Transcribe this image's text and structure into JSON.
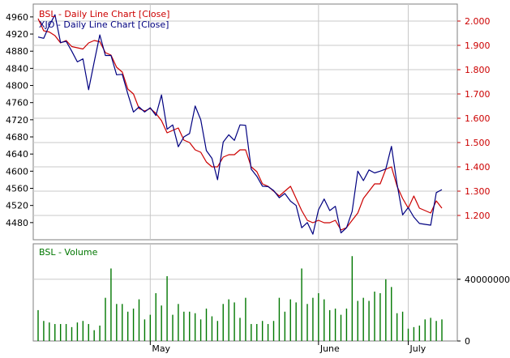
{
  "chart_data": [
    {
      "type": "line",
      "legend": [
        "BSL - Daily Line Chart [Close]",
        "XJO - Daily Line Chart [Close]"
      ],
      "left_axis": {
        "ylim": [
          4440,
          4990
        ],
        "ticks": [
          "4960",
          "4920",
          "4880",
          "4840",
          "4800",
          "4760",
          "4720",
          "4680",
          "4640",
          "4600",
          "4560",
          "4520",
          "4480"
        ],
        "tick_values": [
          4960,
          4920,
          4880,
          4840,
          4800,
          4760,
          4720,
          4680,
          4640,
          4600,
          4560,
          4520,
          4480
        ]
      },
      "right_axis": {
        "ylim": [
          1.1,
          2.07
        ],
        "ticks": [
          "2.000",
          "1.900",
          "1.800",
          "1.700",
          "1.600",
          "1.500",
          "1.400",
          "1.300",
          "1.200"
        ],
        "tick_values": [
          2.0,
          1.9,
          1.8,
          1.7,
          1.6,
          1.5,
          1.4,
          1.3,
          1.2
        ]
      },
      "series": [
        {
          "name": "XJO - Daily Line Chart [Close]",
          "axis": "left",
          "color": "#000080",
          "values": [
            4913,
            4910,
            4940,
            4965,
            4900,
            4903,
            4880,
            4855,
            4862,
            4790,
            4855,
            4918,
            4870,
            4870,
            4825,
            4826,
            4780,
            4738,
            4750,
            4738,
            4748,
            4730,
            4778,
            4698,
            4708,
            4657,
            4680,
            4688,
            4752,
            4720,
            4648,
            4630,
            4580,
            4668,
            4685,
            4672,
            4708,
            4707,
            4605,
            4588,
            4565,
            4564,
            4555,
            4538,
            4548,
            4530,
            4520,
            4468,
            4480,
            4453,
            4510,
            4535,
            4508,
            4518,
            4456,
            4468,
            4506,
            4600,
            4578,
            4603,
            4596,
            4600,
            4605,
            4658,
            4570,
            4498,
            4515,
            4493,
            4478,
            4476,
            4474,
            4550,
            4557
          ]
        },
        {
          "name": "BSL - Daily Line Chart [Close]",
          "axis": "right",
          "color": "#cc0000",
          "values": [
            2.01,
            1.96,
            1.955,
            1.94,
            1.91,
            1.92,
            1.895,
            1.89,
            1.885,
            1.91,
            1.92,
            1.915,
            1.87,
            1.86,
            1.81,
            1.79,
            1.72,
            1.7,
            1.64,
            1.63,
            1.64,
            1.62,
            1.59,
            1.54,
            1.55,
            1.56,
            1.51,
            1.5,
            1.47,
            1.46,
            1.42,
            1.4,
            1.4,
            1.44,
            1.45,
            1.45,
            1.47,
            1.47,
            1.4,
            1.38,
            1.33,
            1.32,
            1.3,
            1.28,
            1.3,
            1.32,
            1.27,
            1.22,
            1.18,
            1.17,
            1.18,
            1.17,
            1.17,
            1.18,
            1.14,
            1.15,
            1.18,
            1.21,
            1.27,
            1.3,
            1.33,
            1.33,
            1.39,
            1.4,
            1.32,
            1.27,
            1.23,
            1.28,
            1.23,
            1.22,
            1.21,
            1.26,
            1.23
          ]
        }
      ],
      "x_labels": [
        "May",
        "June",
        "July"
      ],
      "x_label_index": [
        20,
        50,
        66
      ],
      "grid": true
    },
    {
      "type": "bar",
      "legend": [
        "BSL - Volume"
      ],
      "ylim": [
        0,
        63000000
      ],
      "ticks": [
        "40000000",
        "0"
      ],
      "tick_values": [
        40000000,
        0
      ],
      "series": [
        {
          "name": "BSL - Volume",
          "color": "#007700",
          "values": [
            20000000,
            13000000,
            12000000,
            11000000,
            11000000,
            11000000,
            9000000,
            12000000,
            13000000,
            11000000,
            7000000,
            10000000,
            28000000,
            47000000,
            24000000,
            24000000,
            19000000,
            21000000,
            27000000,
            14000000,
            17000000,
            31000000,
            23000000,
            42000000,
            17000000,
            24000000,
            19000000,
            19000000,
            18000000,
            14000000,
            21000000,
            16000000,
            13000000,
            24000000,
            27000000,
            25000000,
            15000000,
            28000000,
            11000000,
            11000000,
            13000000,
            11000000,
            13000000,
            28000000,
            19000000,
            27000000,
            25000000,
            47000000,
            24000000,
            28000000,
            31000000,
            27000000,
            20000000,
            21000000,
            17000000,
            21000000,
            55000000,
            26000000,
            28000000,
            26000000,
            32000000,
            31000000,
            40000000,
            35000000,
            18000000,
            19000000,
            8000000,
            9000000,
            10000000,
            14000000,
            15000000,
            13000000,
            14000000
          ]
        }
      ]
    }
  ]
}
